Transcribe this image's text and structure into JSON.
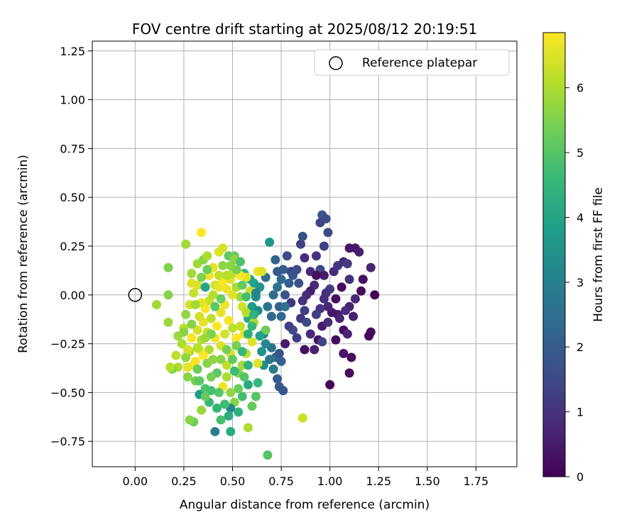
{
  "chart_data": {
    "type": "scatter",
    "title": "FOV centre drift starting at 2025/08/12 20:19:51",
    "xlabel": "Angular distance from reference (arcmin)",
    "ylabel": "Rotation from reference (arcmin)",
    "xlim": [
      -0.22,
      1.96
    ],
    "ylim": [
      -0.88,
      1.3
    ],
    "xticks": [
      "0.00",
      "0.25",
      "0.50",
      "0.75",
      "1.00",
      "1.25",
      "1.50",
      "1.75"
    ],
    "yticks": [
      "−0.75",
      "−0.50",
      "−0.25",
      "0.00",
      "0.25",
      "0.50",
      "0.75",
      "1.00",
      "1.25"
    ],
    "grid": true,
    "legend": {
      "position": "top-right",
      "entries": [
        {
          "label": "Reference platepar",
          "marker": "open-circle"
        }
      ]
    },
    "reference_point": {
      "x": 0.0,
      "y": 0.0
    },
    "colorbar": {
      "label": "Hours from first FF file",
      "range": [
        0,
        6.85
      ],
      "ticks": [
        "0",
        "1",
        "2",
        "3",
        "4",
        "5",
        "6"
      ],
      "colormap": "viridis",
      "colormap_stops": [
        "#440154",
        "#482878",
        "#3e4a89",
        "#31688e",
        "#26828e",
        "#1f9e89",
        "#35b779",
        "#6ece58",
        "#b5de2b",
        "#fde725"
      ]
    },
    "points": [
      [
        1.23,
        0.0,
        0.1
      ],
      [
        1.21,
        -0.19,
        0.2
      ],
      [
        1.2,
        -0.21,
        0.1
      ],
      [
        1.21,
        0.14,
        0.7
      ],
      [
        1.17,
        0.08,
        0.3
      ],
      [
        1.16,
        0.02,
        0.2
      ],
      [
        1.15,
        0.22,
        0.6
      ],
      [
        1.13,
        0.24,
        0.5
      ],
      [
        1.1,
        0.24,
        0.4
      ],
      [
        1.1,
        -0.4,
        0.2
      ],
      [
        1.11,
        -0.32,
        0.2
      ],
      [
        1.07,
        -0.3,
        0.4
      ],
      [
        1.0,
        -0.46,
        0.1
      ],
      [
        1.04,
        -0.1,
        0.5
      ],
      [
        1.07,
        -0.18,
        0.3
      ],
      [
        1.1,
        -0.06,
        0.6
      ],
      [
        1.13,
        -0.02,
        0.8
      ],
      [
        1.06,
        0.04,
        0.2
      ],
      [
        1.0,
        0.03,
        1.2
      ],
      [
        0.98,
        0.01,
        1.0
      ],
      [
        0.96,
        0.41,
        1.8
      ],
      [
        0.98,
        0.39,
        1.6
      ],
      [
        0.95,
        0.37,
        1.4
      ],
      [
        0.99,
        0.32,
        1.5
      ],
      [
        0.97,
        0.25,
        1.3
      ],
      [
        0.93,
        0.2,
        1.0
      ],
      [
        0.95,
        0.13,
        1.5
      ],
      [
        0.92,
        0.05,
        0.8
      ],
      [
        0.9,
        0.02,
        0.6
      ],
      [
        0.88,
        0.0,
        0.9
      ],
      [
        0.86,
        -0.03,
        1.0
      ],
      [
        0.87,
        -0.08,
        1.3
      ],
      [
        0.85,
        -0.12,
        1.1
      ],
      [
        0.88,
        -0.14,
        1.5
      ],
      [
        0.9,
        -0.2,
        0.8
      ],
      [
        0.94,
        -0.23,
        0.4
      ],
      [
        0.96,
        -0.24,
        1.4
      ],
      [
        0.92,
        -0.28,
        0.6
      ],
      [
        0.87,
        -0.28,
        0.3
      ],
      [
        0.83,
        -0.22,
        1.2
      ],
      [
        0.81,
        -0.18,
        1.6
      ],
      [
        0.79,
        -0.16,
        1.3
      ],
      [
        0.77,
        -0.25,
        0.5
      ],
      [
        0.8,
        -0.04,
        1.1
      ],
      [
        0.77,
        0.0,
        1.8
      ],
      [
        0.79,
        0.06,
        2.0
      ],
      [
        0.8,
        0.12,
        1.4
      ],
      [
        0.78,
        0.2,
        1.6
      ],
      [
        0.76,
        0.13,
        2.0
      ],
      [
        0.73,
        0.12,
        1.9
      ],
      [
        0.72,
        0.18,
        2.2
      ],
      [
        0.69,
        0.27,
        3.6
      ],
      [
        0.67,
        0.09,
        2.4
      ],
      [
        0.74,
        -0.06,
        2.1
      ],
      [
        0.7,
        -0.11,
        2.3
      ],
      [
        0.66,
        -0.2,
        3.0
      ],
      [
        0.7,
        -0.27,
        2.6
      ],
      [
        0.72,
        -0.32,
        2.4
      ],
      [
        0.75,
        -0.34,
        2.1
      ],
      [
        0.73,
        -0.43,
        2.0
      ],
      [
        0.74,
        -0.47,
        1.9
      ],
      [
        0.76,
        -0.49,
        1.8
      ],
      [
        0.66,
        -0.36,
        3.4
      ],
      [
        0.63,
        -0.45,
        4.6
      ],
      [
        0.62,
        -0.52,
        5.0
      ],
      [
        0.6,
        -0.57,
        5.2
      ],
      [
        0.58,
        -0.46,
        4.1
      ],
      [
        0.55,
        -0.52,
        4.8
      ],
      [
        0.53,
        -0.6,
        4.4
      ],
      [
        0.51,
        -0.55,
        5.6
      ],
      [
        0.49,
        -0.58,
        3.2
      ],
      [
        0.49,
        -0.7,
        4.2
      ],
      [
        0.44,
        -0.64,
        4.8
      ],
      [
        0.41,
        -0.7,
        3.0
      ],
      [
        0.38,
        -0.55,
        4.6
      ],
      [
        0.34,
        -0.59,
        5.8
      ],
      [
        0.3,
        -0.65,
        5.3
      ],
      [
        0.28,
        -0.64,
        5.6
      ],
      [
        0.33,
        -0.51,
        3.7
      ],
      [
        0.36,
        -0.48,
        4.9
      ],
      [
        0.31,
        -0.44,
        5.4
      ],
      [
        0.27,
        -0.42,
        5.6
      ],
      [
        0.22,
        -0.37,
        6.0
      ],
      [
        0.19,
        -0.38,
        5.5
      ],
      [
        0.18,
        -0.37,
        6.1
      ],
      [
        0.21,
        -0.31,
        6.2
      ],
      [
        0.24,
        -0.25,
        6.0
      ],
      [
        0.25,
        -0.17,
        6.2
      ],
      [
        0.26,
        -0.1,
        5.7
      ],
      [
        0.28,
        -0.05,
        6.4
      ],
      [
        0.3,
        0.01,
        6.3
      ],
      [
        0.29,
        0.06,
        6.5
      ],
      [
        0.29,
        0.11,
        5.9
      ],
      [
        0.32,
        0.16,
        5.9
      ],
      [
        0.35,
        0.18,
        5.6
      ],
      [
        0.37,
        0.2,
        6.0
      ],
      [
        0.43,
        0.22,
        6.5
      ],
      [
        0.45,
        0.24,
        6.4
      ],
      [
        0.48,
        0.2,
        5.1
      ],
      [
        0.51,
        0.2,
        5.3
      ],
      [
        0.51,
        0.18,
        5.7
      ],
      [
        0.54,
        0.17,
        4.9
      ],
      [
        0.56,
        0.11,
        4.5
      ],
      [
        0.59,
        0.08,
        4.1
      ],
      [
        0.61,
        0.06,
        4.0
      ],
      [
        0.63,
        0.12,
        6.7
      ],
      [
        0.65,
        0.12,
        6.5
      ],
      [
        0.64,
        0.04,
        3.6
      ],
      [
        0.62,
        -0.01,
        3.4
      ],
      [
        0.6,
        -0.06,
        3.8
      ],
      [
        0.58,
        -0.12,
        4.2
      ],
      [
        0.56,
        -0.2,
        6.6
      ],
      [
        0.52,
        -0.22,
        6.8
      ],
      [
        0.49,
        -0.3,
        6.5
      ],
      [
        0.47,
        -0.36,
        6.2
      ],
      [
        0.45,
        -0.47,
        6.7
      ],
      [
        0.47,
        -0.42,
        6.0
      ],
      [
        0.5,
        -0.33,
        5.2
      ],
      [
        0.52,
        -0.26,
        5.4
      ],
      [
        0.42,
        -0.4,
        5.1
      ],
      [
        0.4,
        -0.33,
        5.7
      ],
      [
        0.38,
        -0.28,
        6.0
      ],
      [
        0.35,
        -0.31,
        6.9
      ],
      [
        0.33,
        -0.28,
        6.6
      ],
      [
        0.31,
        -0.34,
        6.8
      ],
      [
        0.3,
        -0.36,
        6.8
      ],
      [
        0.34,
        -0.23,
        6.1
      ],
      [
        0.37,
        -0.19,
        6.3
      ],
      [
        0.35,
        -0.14,
        6.6
      ],
      [
        0.33,
        -0.11,
        6.4
      ],
      [
        0.36,
        -0.07,
        6.8
      ],
      [
        0.38,
        -0.03,
        6.3
      ],
      [
        0.4,
        0.0,
        6.1
      ],
      [
        0.41,
        0.05,
        6.4
      ],
      [
        0.43,
        0.04,
        6.6
      ],
      [
        0.45,
        0.07,
        6.9
      ],
      [
        0.47,
        0.03,
        6.7
      ],
      [
        0.49,
        0.08,
        6.5
      ],
      [
        0.5,
        0.11,
        6.2
      ],
      [
        0.52,
        0.04,
        6.0
      ],
      [
        0.54,
        -0.01,
        5.8
      ],
      [
        0.55,
        -0.06,
        6.4
      ],
      [
        0.57,
        -0.09,
        6.1
      ],
      [
        0.54,
        -0.16,
        6.3
      ],
      [
        0.44,
        -0.09,
        6.6
      ],
      [
        0.42,
        -0.16,
        6.9
      ],
      [
        0.41,
        -0.22,
        6.7
      ],
      [
        0.44,
        -0.26,
        6.5
      ],
      [
        0.46,
        -0.2,
        6.4
      ],
      [
        0.48,
        -0.13,
        6.8
      ],
      [
        0.5,
        -0.17,
        6.2
      ],
      [
        0.46,
        -0.05,
        6.7
      ],
      [
        0.39,
        -0.12,
        6.2
      ],
      [
        0.37,
        -0.35,
        5.6
      ],
      [
        0.39,
        -0.42,
        5.4
      ],
      [
        0.43,
        -0.5,
        5.0
      ],
      [
        0.46,
        -0.56,
        4.7
      ],
      [
        0.53,
        -0.4,
        5.5
      ],
      [
        0.55,
        -0.36,
        5.9
      ],
      [
        0.57,
        -0.3,
        6.2
      ],
      [
        0.6,
        -0.24,
        6.5
      ],
      [
        0.61,
        -0.14,
        6.0
      ],
      [
        0.59,
        0.02,
        6.3
      ],
      [
        0.57,
        0.09,
        6.6
      ],
      [
        0.54,
        0.1,
        6.8
      ],
      [
        0.63,
        -0.35,
        6.5
      ],
      [
        0.65,
        -0.29,
        3.5
      ],
      [
        0.67,
        -0.18,
        5.3
      ],
      [
        0.17,
        0.14,
        5.5
      ],
      [
        0.17,
        0.0,
        5.6
      ],
      [
        0.17,
        -0.14,
        5.8
      ],
      [
        0.11,
        -0.05,
        5.9
      ],
      [
        0.26,
        0.26,
        5.9
      ],
      [
        0.34,
        0.32,
        6.9
      ],
      [
        0.27,
        -0.37,
        6.6
      ],
      [
        0.28,
        -0.29,
        6.1
      ],
      [
        0.26,
        -0.32,
        5.7
      ],
      [
        0.58,
        -0.68,
        6.0
      ],
      [
        0.86,
        -0.63,
        6.3
      ],
      [
        0.68,
        -0.82,
        5.0
      ],
      [
        0.5,
        0.0,
        6.5
      ],
      [
        0.45,
        0.15,
        5.7
      ],
      [
        0.43,
        0.1,
        6.2
      ],
      [
        0.38,
        0.1,
        6.7
      ],
      [
        0.4,
        0.14,
        6.6
      ],
      [
        0.47,
        0.1,
        6.1
      ],
      [
        0.32,
        0.05,
        6.5
      ],
      [
        0.34,
        -0.04,
        6.6
      ],
      [
        0.32,
        -0.18,
        6.4
      ],
      [
        0.29,
        -0.22,
        6.8
      ],
      [
        0.36,
        0.04,
        4.0
      ],
      [
        0.62,
        0.01,
        3.1
      ],
      [
        0.63,
        -0.08,
        3.3
      ],
      [
        0.68,
        -0.06,
        2.7
      ],
      [
        0.71,
        0.0,
        2.4
      ],
      [
        0.73,
        0.04,
        2.6
      ],
      [
        0.75,
        0.08,
        2.3
      ],
      [
        0.81,
        0.1,
        1.8
      ],
      [
        0.84,
        0.06,
        1.7
      ],
      [
        0.85,
        0.26,
        1.3
      ],
      [
        0.86,
        0.3,
        1.7
      ],
      [
        0.9,
        0.12,
        0.8
      ],
      [
        0.97,
        0.1,
        0.5
      ],
      [
        1.02,
        0.12,
        0.8
      ],
      [
        1.04,
        0.15,
        1.1
      ],
      [
        1.07,
        0.17,
        0.9
      ],
      [
        1.09,
        0.16,
        1.2
      ],
      [
        1.1,
        0.08,
        1.0
      ],
      [
        1.03,
        -0.02,
        0.3
      ],
      [
        1.01,
        -0.09,
        0.4
      ],
      [
        0.99,
        -0.06,
        0.7
      ],
      [
        0.97,
        -0.02,
        0.9
      ],
      [
        0.95,
        -0.07,
        1.1
      ],
      [
        0.93,
        -0.1,
        1.3
      ],
      [
        0.96,
        -0.16,
        0.5
      ],
      [
        0.99,
        -0.14,
        0.9
      ],
      [
        1.05,
        -0.12,
        0.7
      ],
      [
        1.08,
        -0.08,
        0.9
      ],
      [
        1.12,
        -0.11,
        0.6
      ],
      [
        1.09,
        -0.2,
        0.7
      ],
      [
        1.03,
        -0.23,
        0.2
      ],
      [
        0.93,
        0.1,
        0.3
      ],
      [
        0.87,
        0.19,
        0.9
      ],
      [
        0.83,
        0.13,
        1.6
      ],
      [
        0.75,
        -0.11,
        2.4
      ],
      [
        0.77,
        -0.06,
        2.6
      ],
      [
        0.74,
        -0.3,
        1.8
      ],
      [
        0.69,
        -0.33,
        2.7
      ],
      [
        0.71,
        -0.38,
        2.9
      ],
      [
        0.67,
        -0.25,
        3.2
      ],
      [
        0.64,
        -0.21,
        3.9
      ],
      [
        0.58,
        -0.36,
        4.4
      ],
      [
        0.56,
        -0.42,
        5.0
      ],
      [
        0.53,
        -0.48,
        5.3
      ],
      [
        0.49,
        -0.5,
        5.7
      ],
      [
        0.48,
        -0.62,
        4.3
      ],
      [
        0.42,
        -0.58,
        4.5
      ],
      [
        0.39,
        -0.49,
        4.8
      ],
      [
        0.36,
        -0.52,
        5.2
      ],
      [
        0.33,
        -0.44,
        5.1
      ],
      [
        0.32,
        -0.38,
        5.3
      ],
      [
        0.25,
        -0.19,
        5.6
      ],
      [
        0.22,
        -0.21,
        5.8
      ],
      [
        0.27,
        -0.28,
        6.4
      ],
      [
        0.29,
        -0.15,
        5.6
      ],
      [
        0.31,
        -0.05,
        5.9
      ],
      [
        0.32,
        -0.27,
        6.1
      ],
      [
        0.44,
        -0.33,
        5.6
      ],
      [
        0.47,
        -0.28,
        5.4
      ],
      [
        0.51,
        -0.39,
        4.7
      ],
      [
        0.55,
        -0.29,
        4.6
      ],
      [
        0.58,
        -0.2,
        4.3
      ],
      [
        0.6,
        -0.16,
        4.6
      ],
      [
        0.61,
        -0.1,
        4.4
      ],
      [
        0.57,
        -0.01,
        4.8
      ],
      [
        0.55,
        0.05,
        5.2
      ],
      [
        0.52,
        0.13,
        5.4
      ],
      [
        0.49,
        0.15,
        5.6
      ],
      [
        0.44,
        -0.02,
        5.3
      ],
      [
        0.41,
        -0.06,
        5.1
      ],
      [
        0.39,
        -0.2,
        5.4
      ],
      [
        0.36,
        -0.22,
        5.8
      ],
      [
        0.34,
        0.09,
        5.5
      ],
      [
        0.37,
        0.13,
        5.3
      ]
    ]
  }
}
